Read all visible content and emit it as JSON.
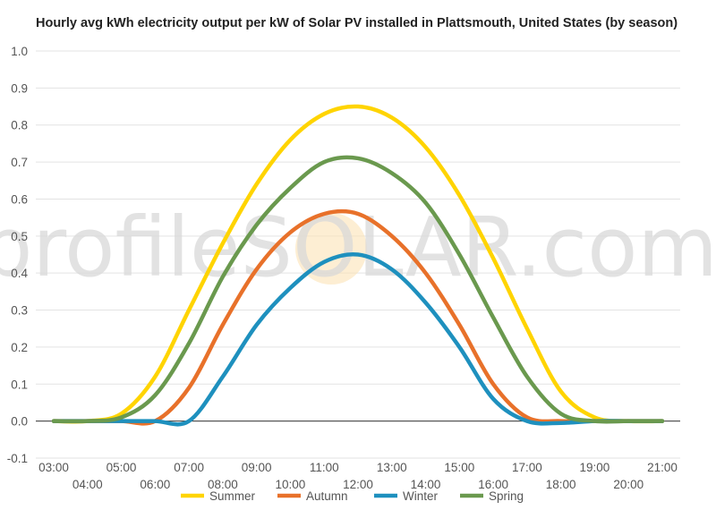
{
  "chart_data": {
    "type": "line",
    "title": "Hourly avg kWh electricity output per kW of Solar PV installed in Plattsmouth, United States (by season)",
    "xlabel": "",
    "ylabel": "",
    "ylim": [
      -0.1,
      1.0
    ],
    "yticks": [
      "-0.1",
      "0.0",
      "0.1",
      "0.2",
      "0.3",
      "0.4",
      "0.5",
      "0.6",
      "0.7",
      "0.8",
      "0.9",
      "1.0"
    ],
    "x": [
      "03:00",
      "04:00",
      "05:00",
      "06:00",
      "07:00",
      "08:00",
      "09:00",
      "10:00",
      "11:00",
      "12:00",
      "13:00",
      "14:00",
      "15:00",
      "16:00",
      "17:00",
      "18:00",
      "19:00",
      "20:00",
      "21:00"
    ],
    "grid": true,
    "legend": "bottom",
    "watermark": "profileSOLAR.com",
    "series": [
      {
        "name": "Summer",
        "color": "#FFD400",
        "values": [
          0.0,
          0.0,
          0.02,
          0.12,
          0.3,
          0.48,
          0.64,
          0.76,
          0.83,
          0.85,
          0.82,
          0.74,
          0.61,
          0.44,
          0.25,
          0.08,
          0.01,
          0.0,
          0.0
        ]
      },
      {
        "name": "Autumn",
        "color": "#E8712A",
        "values": [
          0.0,
          0.0,
          0.0,
          0.0,
          0.09,
          0.26,
          0.41,
          0.51,
          0.56,
          0.56,
          0.5,
          0.4,
          0.26,
          0.1,
          0.01,
          0.0,
          0.0,
          0.0,
          0.0
        ]
      },
      {
        "name": "Winter",
        "color": "#1E90BE",
        "values": [
          0.0,
          0.0,
          0.0,
          0.0,
          0.0,
          0.12,
          0.26,
          0.36,
          0.43,
          0.45,
          0.41,
          0.32,
          0.2,
          0.06,
          0.0,
          -0.005,
          0.0,
          0.0,
          0.0
        ]
      },
      {
        "name": "Spring",
        "color": "#6A994E",
        "values": [
          0.0,
          0.0,
          0.01,
          0.07,
          0.21,
          0.39,
          0.53,
          0.63,
          0.7,
          0.71,
          0.67,
          0.59,
          0.45,
          0.28,
          0.12,
          0.02,
          0.0,
          0.0,
          0.0
        ]
      }
    ]
  }
}
